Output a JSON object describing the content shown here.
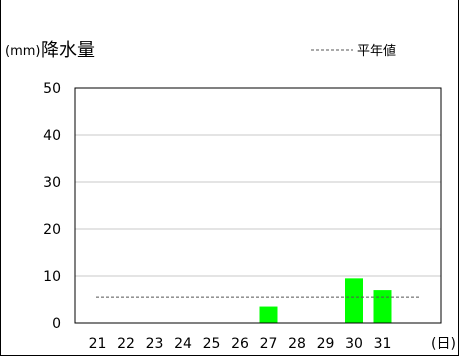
{
  "chart_data": {
    "type": "bar",
    "title_unit": "(mm)",
    "title": "降水量",
    "x_unit": "(日)",
    "categories": [
      "21",
      "22",
      "23",
      "24",
      "25",
      "26",
      "27",
      "28",
      "29",
      "30",
      "31"
    ],
    "values": [
      0,
      0,
      0,
      0,
      0,
      0,
      3.5,
      0,
      0,
      9.5,
      7
    ],
    "ylim": [
      0,
      50
    ],
    "yticks": [
      0,
      10,
      20,
      30,
      40,
      50
    ],
    "grid": true,
    "bar_color": "#00ff00",
    "average_line": {
      "label": "平年値",
      "value": 5.5,
      "color": "#555555"
    },
    "legend_position": "top-right"
  }
}
